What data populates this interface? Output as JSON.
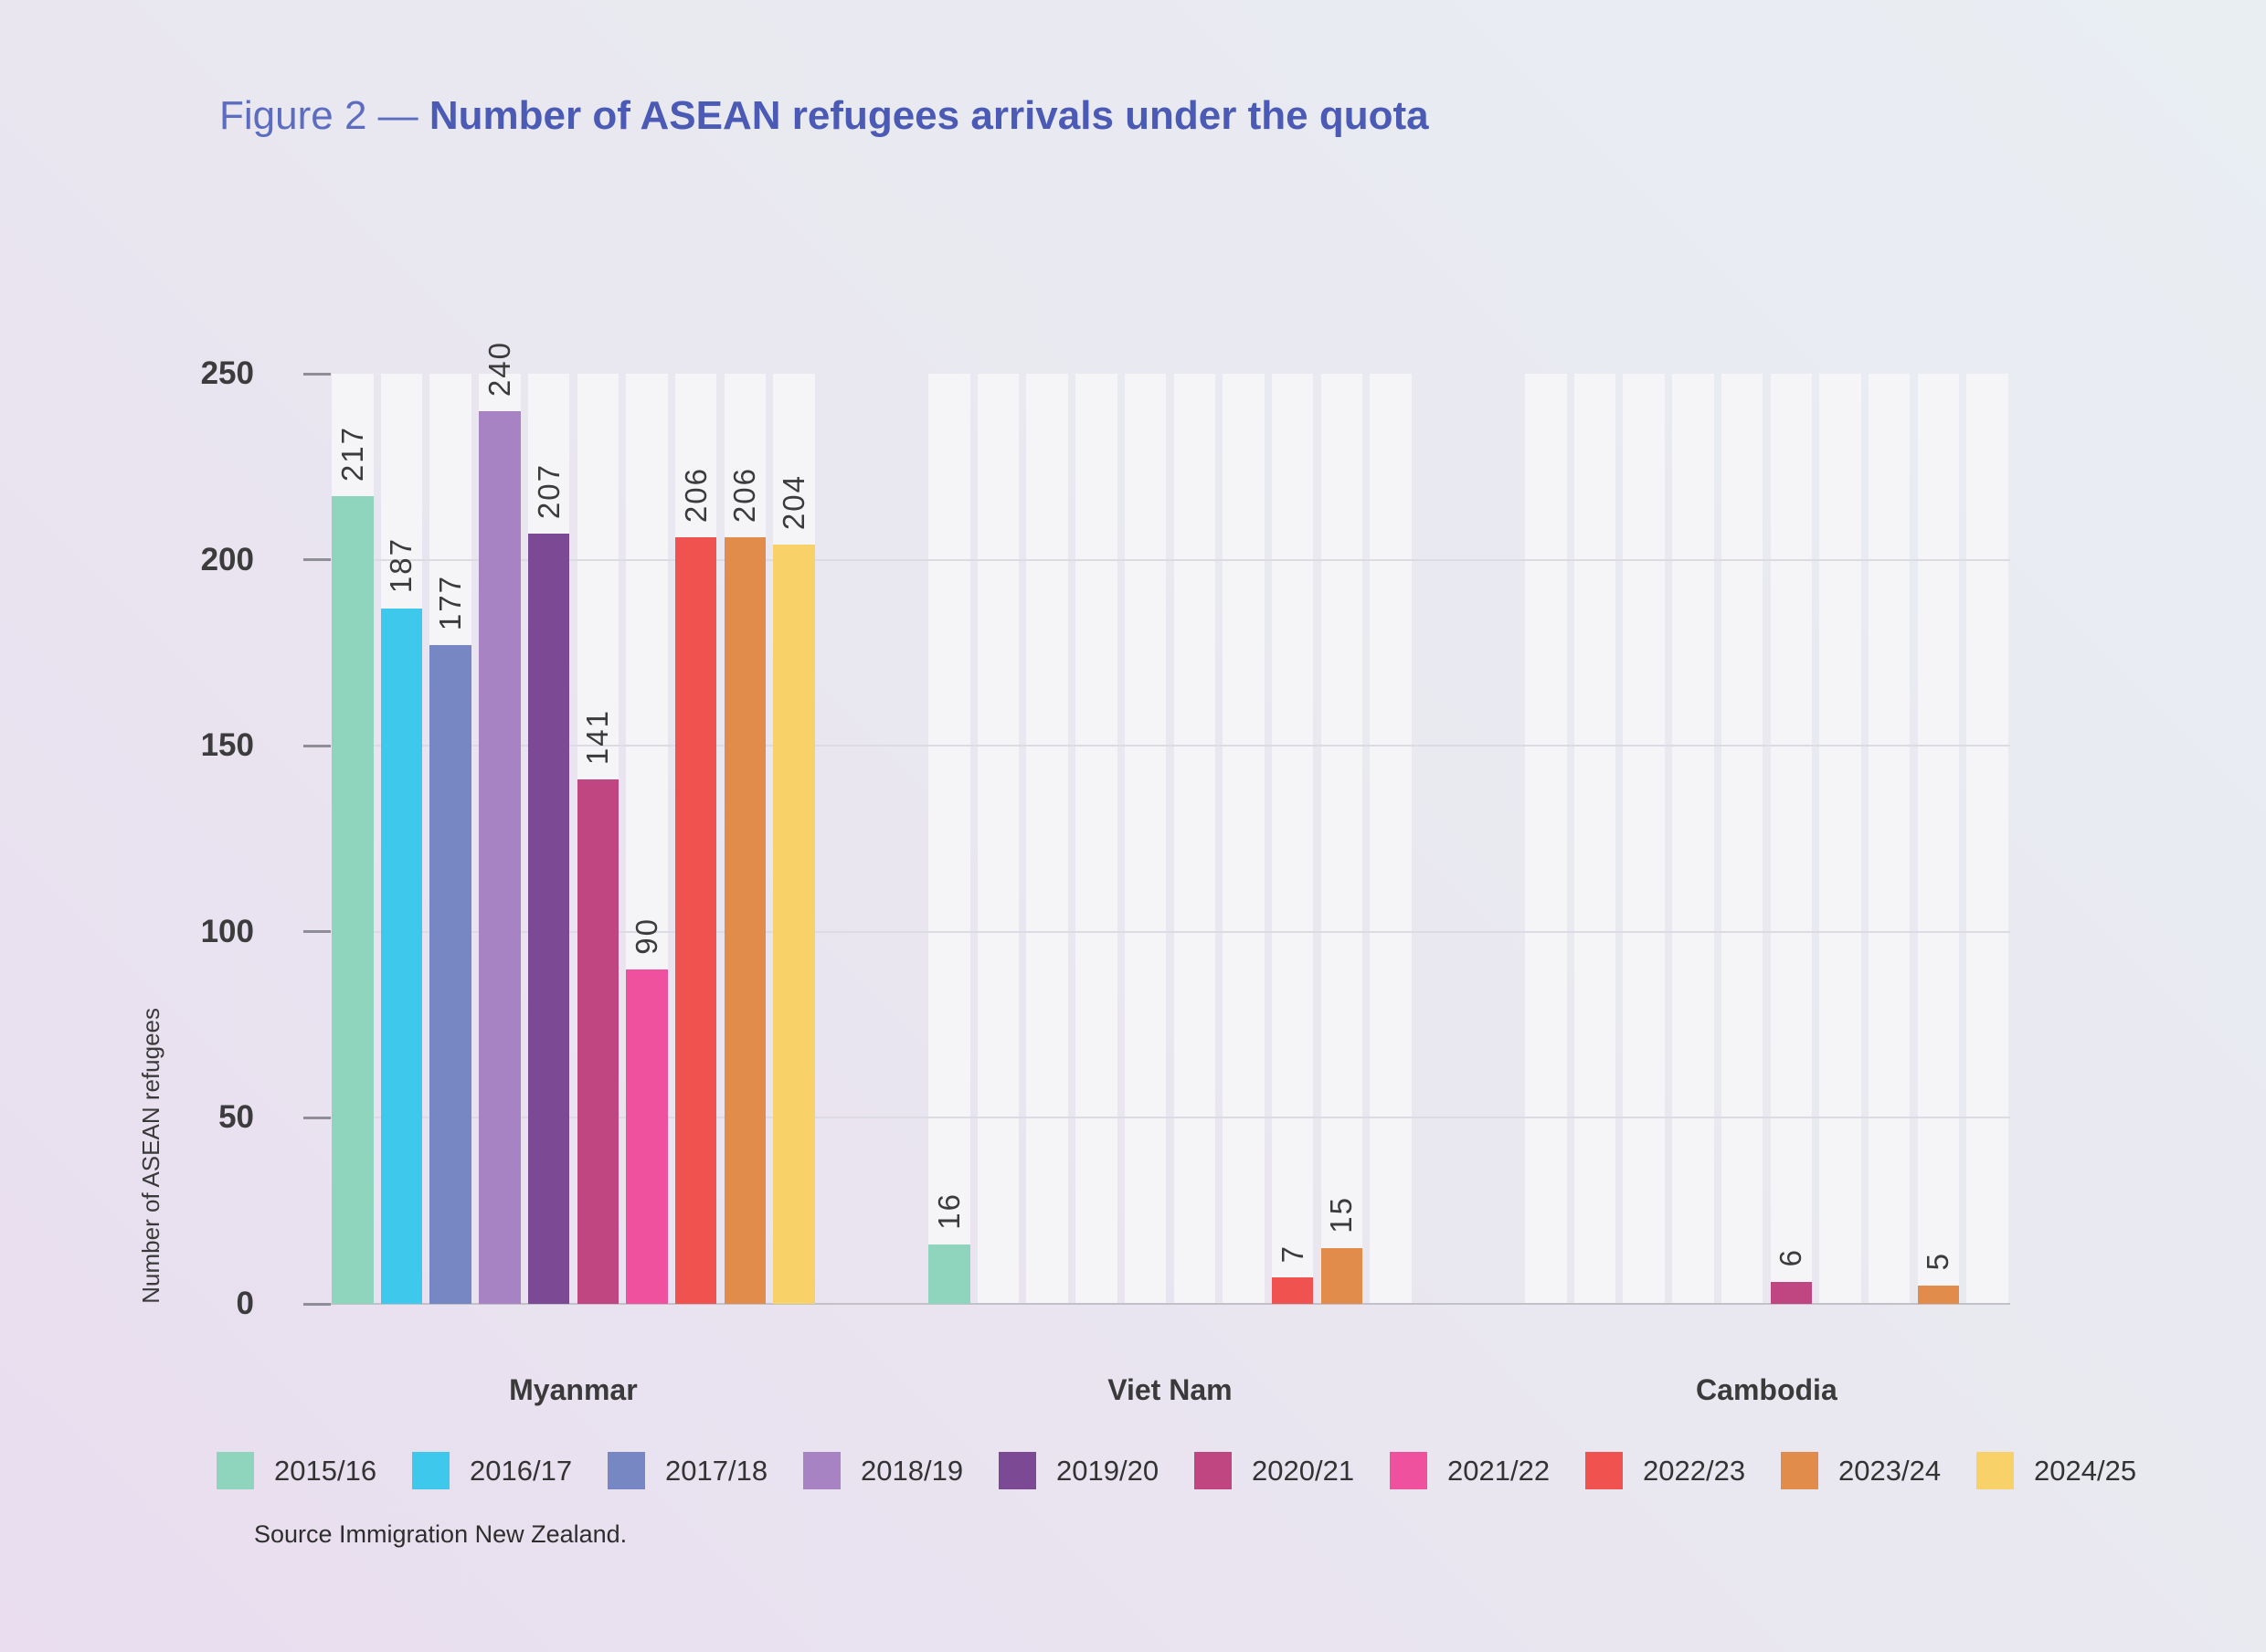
{
  "title": {
    "prefix": "Figure 2 —",
    "main": "Number of ASEAN refugees arrivals under the quota"
  },
  "source": "Source Immigration New Zealand.",
  "chart_data": {
    "type": "bar",
    "title": "Number of ASEAN refugees arrivals under the quota",
    "xlabel": "",
    "ylabel": "Number of ASEAN refugees",
    "ylim": [
      0,
      250
    ],
    "yticks": [
      0,
      50,
      100,
      150,
      200,
      250
    ],
    "grid": true,
    "legend_position": "bottom",
    "background_column_color": "#f5f4f7",
    "categories": [
      "Myanmar",
      "Viet Nam",
      "Cambodia"
    ],
    "series": [
      {
        "name": "2015/16",
        "color": "#8fd4bd",
        "values": [
          217,
          16,
          null
        ]
      },
      {
        "name": "2016/17",
        "color": "#3ec8ec",
        "values": [
          187,
          null,
          null
        ]
      },
      {
        "name": "2017/18",
        "color": "#7687c4",
        "values": [
          177,
          null,
          null
        ]
      },
      {
        "name": "2018/19",
        "color": "#a783c3",
        "values": [
          240,
          null,
          null
        ]
      },
      {
        "name": "2019/20",
        "color": "#7c4a95",
        "values": [
          207,
          null,
          null
        ]
      },
      {
        "name": "2020/21",
        "color": "#c04682",
        "values": [
          141,
          null,
          6
        ]
      },
      {
        "name": "2021/22",
        "color": "#f0519e",
        "values": [
          90,
          null,
          null
        ]
      },
      {
        "name": "2022/23",
        "color": "#f0534f",
        "values": [
          206,
          7,
          null
        ]
      },
      {
        "name": "2023/24",
        "color": "#e18c4b",
        "values": [
          206,
          15,
          5
        ]
      },
      {
        "name": "2024/25",
        "color": "#f8d268",
        "values": [
          204,
          null,
          null
        ]
      }
    ]
  }
}
